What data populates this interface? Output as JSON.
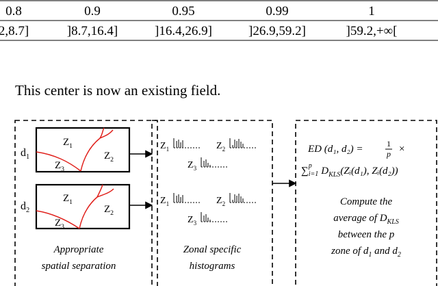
{
  "table": {
    "rows": [
      [
        "0.8",
        "0.9",
        "0.95",
        "0.99",
        "1"
      ],
      [
        "2,8.7]",
        "]8.7,16.4]",
        "]16.4,26.9]",
        "]26.9,59.2]",
        "]59.2,+∞["
      ]
    ]
  },
  "sentence": "This center is now an existing field.",
  "diagram": {
    "docs": [
      {
        "base": "d",
        "sub": "1"
      },
      {
        "base": "d",
        "sub": "2"
      }
    ],
    "zones": [
      {
        "base": "Z",
        "sub": "1"
      },
      {
        "base": "Z",
        "sub": "2"
      },
      {
        "base": "Z",
        "sub": "3"
      }
    ],
    "caption1": [
      "Appropriate",
      "spatial separation"
    ],
    "caption2": [
      "Zonal specific",
      "histograms"
    ],
    "formula": {
      "lhs": "ED (d₁, d₂) = ",
      "num": "1",
      "den": "p",
      "times": "×",
      "sum": "∑",
      "sum_sub": "i=1",
      "sum_sup": "p",
      "d": "D",
      "d_sub": "KLS",
      "rest": "(Zᵢ(d₁), Zᵢ(d₂))"
    },
    "caption3": {
      "line1": "Compute the",
      "line2": "average of ",
      "d": "D",
      "d_sub": "KLS",
      "line3": "between the p",
      "line4a": "zone of ",
      "d1": "d",
      "d1_sub": "1",
      "and": " and ",
      "d2": "d",
      "d2_sub": "2"
    }
  }
}
